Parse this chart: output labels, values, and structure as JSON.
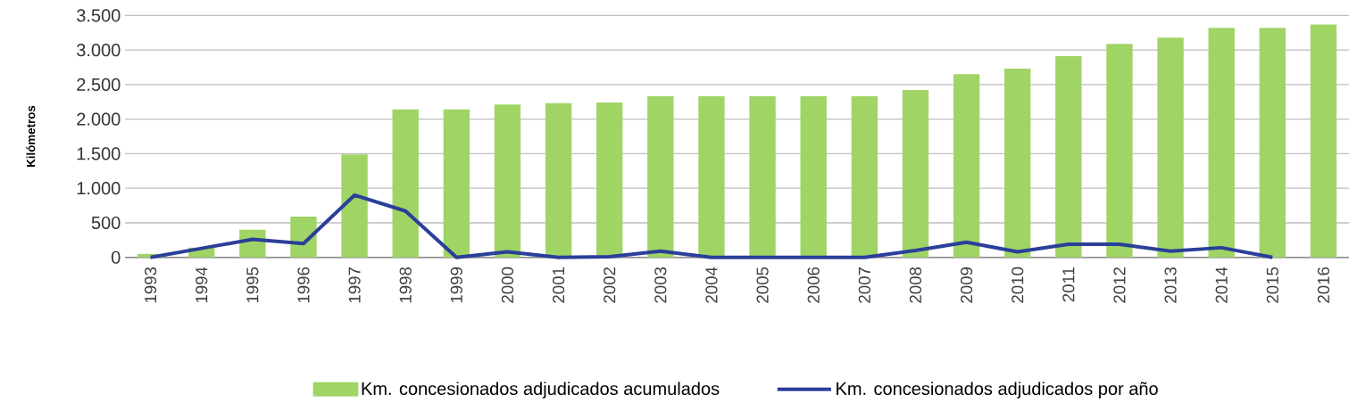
{
  "chart_data": {
    "type": "bar",
    "ylabel": "Kilómetros",
    "categories": [
      "1993",
      "1994",
      "1995",
      "1996",
      "1997",
      "1998",
      "1999",
      "2000",
      "2001",
      "2002",
      "2003",
      "2004",
      "2005",
      "2006",
      "2007",
      "2008",
      "2009",
      "2010",
      "2011",
      "2012",
      "2013",
      "2014",
      "2015",
      "2016"
    ],
    "series": [
      {
        "name": "Km. concesionados adjudicados acumulados",
        "color": "#a0d465",
        "values": [
          50,
          140,
          400,
          590,
          1490,
          2140,
          2140,
          2210,
          2230,
          2240,
          2330,
          2330,
          2330,
          2330,
          2330,
          2420,
          2650,
          2730,
          2910,
          3090,
          3180,
          3320,
          3320,
          3370
        ]
      },
      {
        "name": "Km. concesionados adjudicados por año",
        "type": "line",
        "color": "#2a3f99",
        "values": [
          0,
          130,
          260,
          200,
          900,
          670,
          0,
          80,
          0,
          10,
          90,
          0,
          0,
          0,
          0,
          100,
          220,
          80,
          190,
          190,
          90,
          140,
          0,
          null
        ]
      }
    ],
    "ylim": [
      0,
      3500
    ],
    "yticks": [
      {
        "value": 0,
        "label": "0"
      },
      {
        "value": 500,
        "label": "500"
      },
      {
        "value": 1000,
        "label": "1.000"
      },
      {
        "value": 1500,
        "label": "1.500"
      },
      {
        "value": 2000,
        "label": "2.000"
      },
      {
        "value": 2500,
        "label": "2.500"
      },
      {
        "value": 3000,
        "label": "3.000"
      },
      {
        "value": 3500,
        "label": "3.500"
      }
    ],
    "grid": "y",
    "legend": "bottom",
    "marker": "none"
  }
}
